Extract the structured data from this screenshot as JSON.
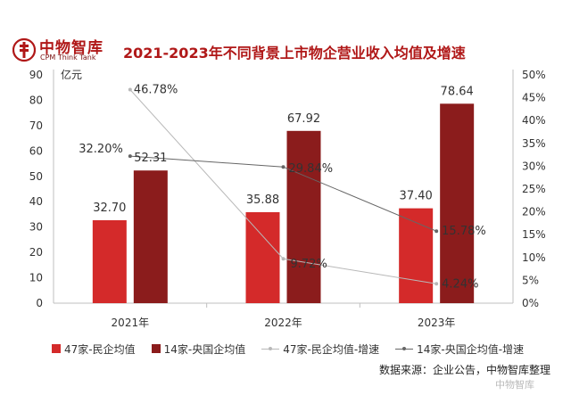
{
  "logo": {
    "name_cn": "中物智库",
    "name_en": "CPM Think Tank"
  },
  "colors": {
    "title": "#b01818",
    "private": "#d42a2a",
    "central": "#8b1c1c",
    "private_growth": "#b8b8b8",
    "central_growth": "#666666"
  },
  "legend": {
    "private_avg": "47家-民企均值",
    "central_avg": "14家-央国企均值",
    "private_growth": "47家-民企均值-增速",
    "central_growth": "14家-央国企均值-增速"
  },
  "source": "数据来源：企业公告，中物智库整理",
  "watermark": "中物智库",
  "chart_data": {
    "type": "bar",
    "title": "2021-2023年不同背景上市物企营业收入均值及增速",
    "categories": [
      "2021年",
      "2022年",
      "2023年"
    ],
    "y_left": {
      "unit": "亿元",
      "min": 0,
      "max": 90,
      "ticks": [
        0,
        10,
        20,
        30,
        40,
        50,
        60,
        70,
        80,
        90
      ]
    },
    "y_right": {
      "min": 0,
      "max": 50,
      "ticks": [
        "0%",
        "5%",
        "10%",
        "15%",
        "20%",
        "25%",
        "30%",
        "35%",
        "40%",
        "45%",
        "50%"
      ]
    },
    "series": [
      {
        "name": "47家-民企均值",
        "kind": "bar",
        "axis": "left",
        "values": [
          32.7,
          35.88,
          37.4
        ],
        "labels": [
          "32.70",
          "35.88",
          "37.40"
        ]
      },
      {
        "name": "14家-央国企均值",
        "kind": "bar",
        "axis": "left",
        "values": [
          52.31,
          67.92,
          78.64
        ],
        "labels": [
          "52.31",
          "67.92",
          "78.64"
        ]
      },
      {
        "name": "47家-民企均值-增速",
        "kind": "line",
        "axis": "right",
        "values": [
          46.78,
          9.72,
          4.24
        ],
        "labels": [
          "46.78%",
          "9.72%",
          "4.24%"
        ]
      },
      {
        "name": "14家-央国企均值-增速",
        "kind": "line",
        "axis": "right",
        "values": [
          32.2,
          29.84,
          15.78
        ],
        "labels": [
          "32.20%",
          "29.84%",
          "15.78%"
        ]
      }
    ],
    "grid": false,
    "legend_position": "bottom"
  }
}
